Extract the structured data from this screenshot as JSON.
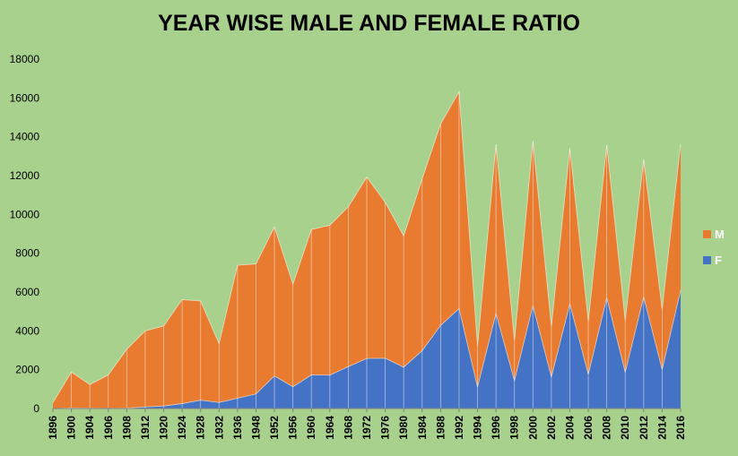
{
  "chart_data": {
    "type": "area",
    "stacked": true,
    "title": "YEAR WISE MALE AND FEMALE RATIO",
    "xlabel": "",
    "ylabel": "",
    "ylim": [
      0,
      18000
    ],
    "y_ticks": [
      0,
      2000,
      4000,
      6000,
      8000,
      10000,
      12000,
      14000,
      16000,
      18000
    ],
    "grid": false,
    "legend_position": "right",
    "categories": [
      "1896",
      "1900",
      "1904",
      "1906",
      "1908",
      "1912",
      "1920",
      "1924",
      "1928",
      "1932",
      "1936",
      "1948",
      "1952",
      "1956",
      "1960",
      "1964",
      "1968",
      "1972",
      "1976",
      "1980",
      "1984",
      "1988",
      "1992",
      "1994",
      "1996",
      "1998",
      "2000",
      "2002",
      "2004",
      "2006",
      "2008",
      "2010",
      "2012",
      "2014",
      "2016"
    ],
    "series": [
      {
        "name": "F",
        "color": "#4472c4",
        "values": [
          0,
          30,
          15,
          10,
          20,
          80,
          130,
          250,
          430,
          310,
          530,
          750,
          1680,
          1120,
          1730,
          1720,
          2160,
          2580,
          2590,
          2130,
          2980,
          4280,
          5150,
          1100,
          4890,
          1430,
          5300,
          1620,
          5390,
          1750,
          5700,
          1860,
          5740,
          2000,
          6090
        ]
      },
      {
        "name": "M",
        "color": "#e87b2f",
        "values": [
          300,
          1850,
          1220,
          1720,
          3030,
          3920,
          4120,
          5360,
          5110,
          3020,
          6850,
          6700,
          7670,
          5280,
          7490,
          7720,
          8230,
          9340,
          8030,
          6760,
          8840,
          10370,
          11170,
          2100,
          8710,
          2040,
          8490,
          2580,
          8020,
          2730,
          7870,
          2660,
          7080,
          3100,
          7530
        ]
      }
    ]
  }
}
